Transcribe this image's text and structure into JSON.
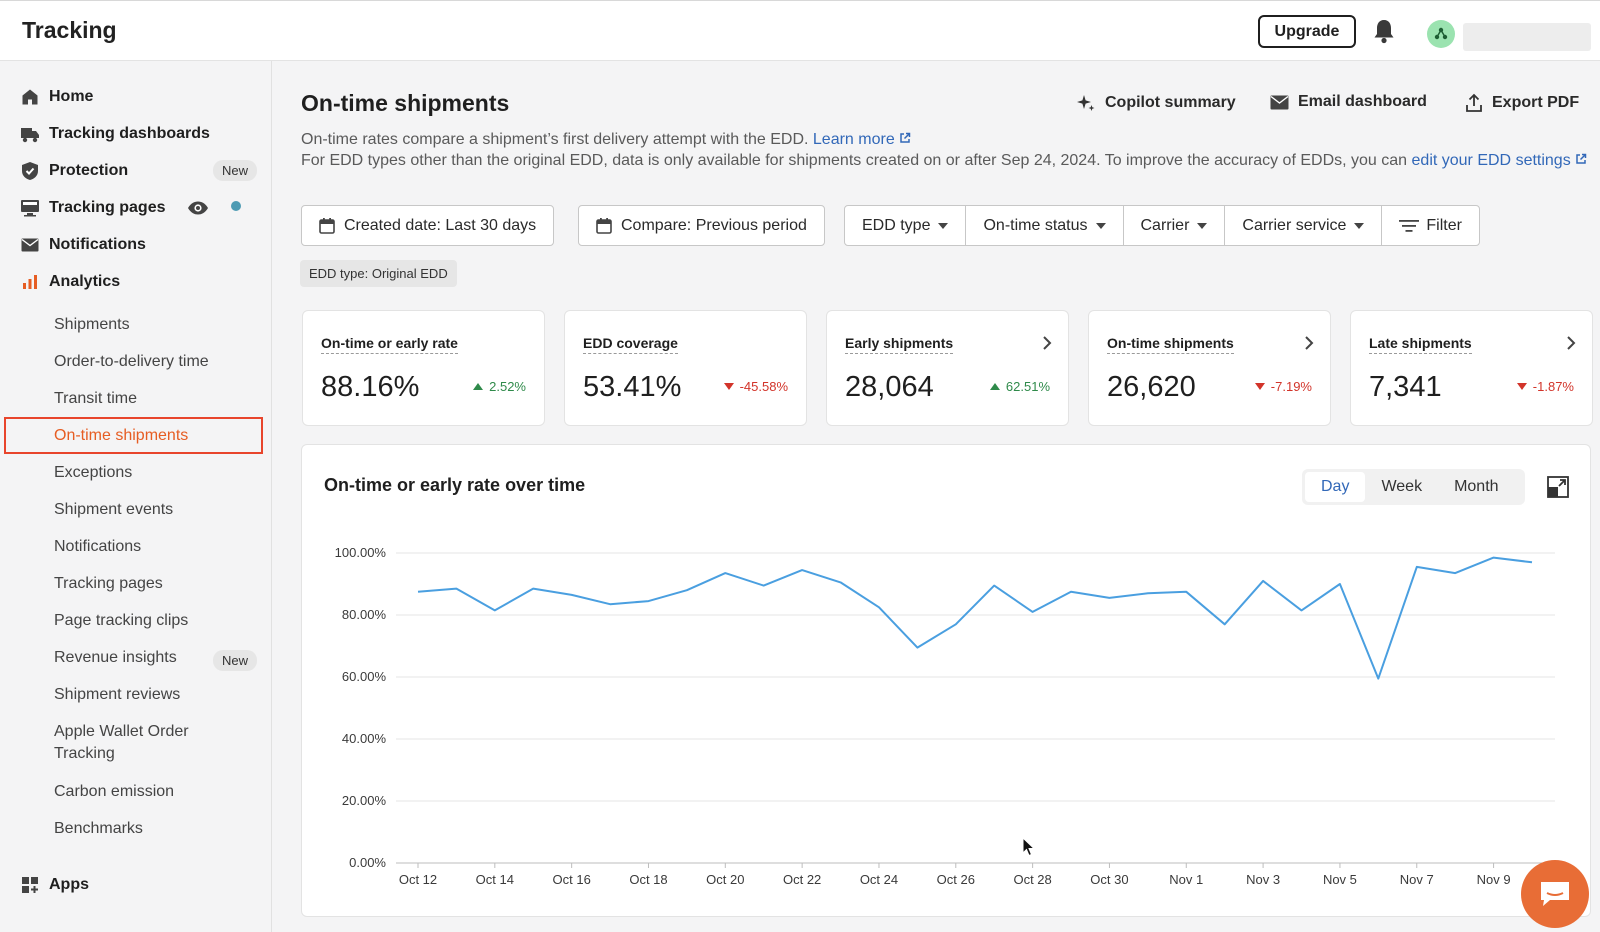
{
  "app": {
    "title": "Tracking"
  },
  "topbar": {
    "upgrade_label": "Upgrade"
  },
  "sidebar": {
    "items": [
      {
        "label": "Home",
        "icon": "home-icon"
      },
      {
        "label": "Tracking dashboards",
        "icon": "truck-icon"
      },
      {
        "label": "Protection",
        "icon": "shield-icon",
        "badge": "New"
      },
      {
        "label": "Tracking pages",
        "icon": "monitor-icon"
      },
      {
        "label": "Notifications",
        "icon": "mail-icon"
      },
      {
        "label": "Analytics",
        "icon": "bar-chart-icon"
      }
    ],
    "analytics_subitems": [
      {
        "label": "Shipments"
      },
      {
        "label": "Order-to-delivery time"
      },
      {
        "label": "Transit time"
      },
      {
        "label": "On-time shipments",
        "active": true
      },
      {
        "label": "Exceptions"
      },
      {
        "label": "Shipment events"
      },
      {
        "label": "Notifications"
      },
      {
        "label": "Tracking pages"
      },
      {
        "label": "Page tracking clips"
      },
      {
        "label": "Revenue insights",
        "badge": "New"
      },
      {
        "label": "Shipment reviews"
      },
      {
        "label": "Apple Wallet Order Tracking"
      },
      {
        "label": "Carbon emission"
      },
      {
        "label": "Benchmarks"
      }
    ],
    "apps": {
      "label": "Apps",
      "icon": "apps-grid-icon"
    }
  },
  "main": {
    "title": "On-time shipments",
    "actions": {
      "copilot": "Copilot summary",
      "email": "Email dashboard",
      "export": "Export PDF"
    },
    "description": {
      "line1": "On-time rates compare a shipment’s first delivery attempt with the EDD.",
      "learn_more": "Learn more",
      "line2": "For EDD types other than the original EDD, data is only available for shipments created on or after Sep 24, 2024. To improve the accuracy of EDDs, you can",
      "edit_link_a": "edit your EDD",
      "edit_link_b": "settings"
    },
    "filters": {
      "created_date": "Created date: Last 30 days",
      "compare": "Compare: Previous period",
      "edd_type": "EDD type",
      "on_time_status": "On-time status",
      "carrier": "Carrier",
      "carrier_service": "Carrier service",
      "filter": "Filter"
    },
    "active_chip": "EDD type: Original EDD",
    "metrics": [
      {
        "label": "On-time or early rate",
        "value": "88.16%",
        "change": "2.52%",
        "direction": "up"
      },
      {
        "label": "EDD coverage",
        "value": "53.41%",
        "change": "-45.58%",
        "direction": "down"
      },
      {
        "label": "Early shipments",
        "value": "28,064",
        "change": "62.51%",
        "direction": "up"
      },
      {
        "label": "On-time shipments",
        "value": "26,620",
        "change": "-7.19%",
        "direction": "down"
      },
      {
        "label": "Late shipments",
        "value": "7,341",
        "change": "-1.87%",
        "direction": "down"
      }
    ],
    "chart_panel": {
      "title": "On-time or early rate over time",
      "granularity": [
        "Day",
        "Week",
        "Month"
      ],
      "selected": "Day"
    }
  },
  "colors": {
    "accent_orange": "#e65d23",
    "link_blue": "#3268b8",
    "line_blue": "#4a9fe0",
    "up_green": "#2f8a4a",
    "down_red": "#d2342a"
  },
  "chart_data": {
    "type": "line",
    "title": "On-time or early rate over time",
    "xlabel": "",
    "ylabel": "",
    "ylim": [
      0,
      100
    ],
    "yticks": [
      "0.00%",
      "20.00%",
      "40.00%",
      "60.00%",
      "80.00%",
      "100.00%"
    ],
    "xticks": [
      "Oct 12",
      "Oct 14",
      "Oct 16",
      "Oct 18",
      "Oct 20",
      "Oct 22",
      "Oct 24",
      "Oct 26",
      "Oct 28",
      "Oct 30",
      "Nov 1",
      "Nov 3",
      "Nov 5",
      "Nov 7",
      "Nov 9"
    ],
    "grid": true,
    "series": [
      {
        "x": [
          "Oct 12",
          "Oct 13",
          "Oct 14",
          "Oct 15",
          "Oct 16",
          "Oct 17",
          "Oct 18",
          "Oct 19",
          "Oct 20",
          "Oct 21",
          "Oct 22",
          "Oct 23",
          "Oct 24",
          "Oct 25",
          "Oct 26",
          "Oct 27",
          "Oct 28",
          "Oct 29",
          "Oct 30",
          "Oct 31",
          "Nov 1",
          "Nov 2",
          "Nov 3",
          "Nov 4",
          "Nov 5",
          "Nov 6",
          "Nov 7",
          "Nov 8",
          "Nov 9",
          "Nov 10"
        ],
        "values": [
          87.5,
          88.5,
          81.5,
          88.5,
          86.5,
          83.5,
          84.5,
          88.0,
          93.5,
          89.5,
          94.5,
          90.5,
          82.5,
          69.5,
          77.0,
          89.5,
          81.0,
          87.5,
          85.5,
          87.0,
          87.5,
          77.0,
          91.0,
          81.5,
          90.0,
          59.5,
          95.5,
          93.5,
          98.5,
          97.0
        ]
      }
    ]
  }
}
